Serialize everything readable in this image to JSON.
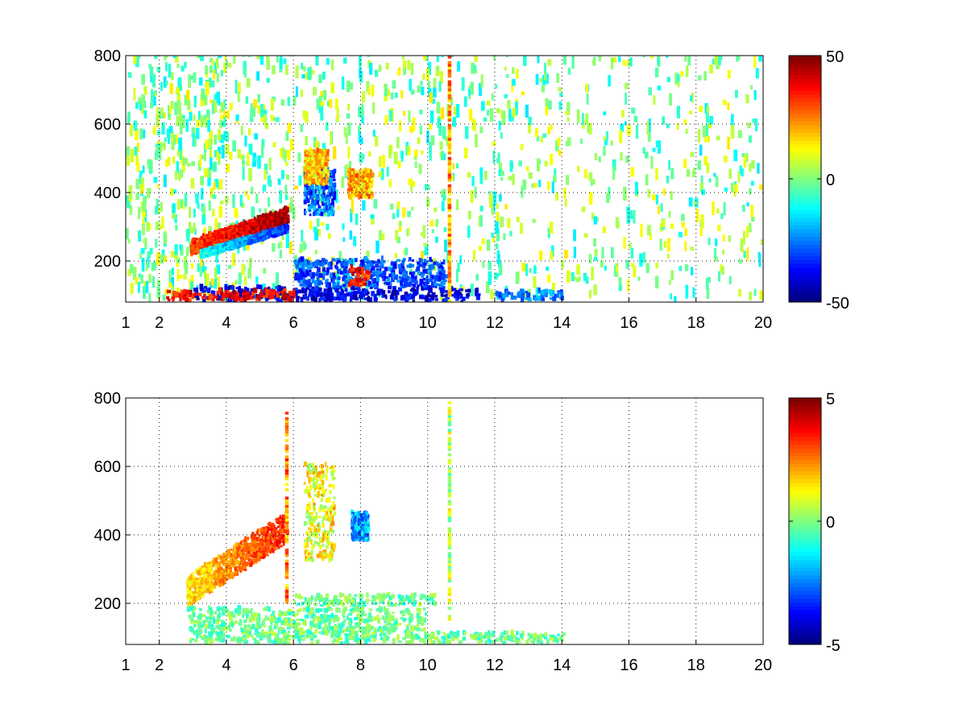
{
  "chart_data": [
    {
      "type": "heatmap",
      "title": "",
      "xlabel": "",
      "ylabel": "",
      "xlim": [
        1,
        20
      ],
      "ylim": [
        80,
        800
      ],
      "xticks": [
        1,
        2,
        4,
        6,
        8,
        10,
        12,
        14,
        16,
        18,
        20
      ],
      "yticks": [
        200,
        400,
        600,
        800
      ],
      "grid": true,
      "colormap": "jet",
      "colorbar": {
        "min": -50,
        "max": 50,
        "ticks": [
          -50,
          0,
          50
        ],
        "placement": "right"
      },
      "features": [
        {
          "kind": "streak",
          "x": [
            2.9,
            5.8
          ],
          "y": [
            235,
            330
          ],
          "values": [
            30,
            48
          ],
          "spread": 22
        },
        {
          "kind": "streak",
          "x": [
            3.2,
            5.8
          ],
          "y": [
            215,
            290
          ],
          "values": [
            -10,
            -35
          ],
          "spread": 10
        },
        {
          "kind": "blob",
          "x": [
            6.3,
            7.2
          ],
          "y": [
            330,
            460
          ],
          "value": -28
        },
        {
          "kind": "blob",
          "x": [
            6.3,
            7.0
          ],
          "y": [
            420,
            520
          ],
          "value": 18
        },
        {
          "kind": "blob",
          "x": [
            7.6,
            8.3
          ],
          "y": [
            380,
            460
          ],
          "value": 20
        },
        {
          "kind": "band",
          "x": [
            3.0,
            11.5
          ],
          "y": [
            80,
            120
          ],
          "value": -40
        },
        {
          "kind": "band",
          "x": [
            2.2,
            6.0
          ],
          "y": [
            80,
            110
          ],
          "value": 38
        },
        {
          "kind": "band",
          "x": [
            6.0,
            10.5
          ],
          "y": [
            120,
            200
          ],
          "value": -30
        },
        {
          "kind": "band",
          "x": [
            7.6,
            8.2
          ],
          "y": [
            120,
            180
          ],
          "value": 35
        },
        {
          "kind": "band",
          "x": [
            12.0,
            14.0
          ],
          "y": [
            80,
            110
          ],
          "value": -25
        },
        {
          "kind": "line",
          "x": [
            10.6,
            10.7
          ],
          "y": [
            80,
            800
          ],
          "value": 22
        }
      ],
      "background_noise": {
        "x": [
          1,
          20
        ],
        "y": [
          80,
          800
        ],
        "range": [
          -15,
          15
        ]
      }
    },
    {
      "type": "heatmap",
      "title": "",
      "xlabel": "",
      "ylabel": "",
      "xlim": [
        1,
        20
      ],
      "ylim": [
        80,
        800
      ],
      "xticks": [
        1,
        2,
        4,
        6,
        8,
        10,
        12,
        14,
        16,
        18,
        20
      ],
      "yticks": [
        200,
        400,
        600,
        800
      ],
      "grid": true,
      "colormap": "jet",
      "colorbar": {
        "min": -5,
        "max": 5,
        "ticks": [
          -5,
          0,
          5
        ],
        "placement": "right"
      },
      "features": [
        {
          "kind": "streak",
          "x": [
            2.8,
            5.8
          ],
          "y": [
            230,
            420
          ],
          "values": [
            1.5,
            3.5
          ],
          "spread": 45
        },
        {
          "kind": "blob",
          "x": [
            6.3,
            7.2
          ],
          "y": [
            320,
            600
          ],
          "value": 1.2
        },
        {
          "kind": "blob",
          "x": [
            7.7,
            8.2
          ],
          "y": [
            380,
            460
          ],
          "value": -2.2
        },
        {
          "kind": "band",
          "x": [
            2.8,
            10.0
          ],
          "y": [
            80,
            180
          ],
          "value": -0.2
        },
        {
          "kind": "band",
          "x": [
            10.0,
            14.0
          ],
          "y": [
            80,
            110
          ],
          "value": -0.2
        },
        {
          "kind": "band",
          "x": [
            6.0,
            10.2
          ],
          "y": [
            190,
            220
          ],
          "value": -0.2
        },
        {
          "kind": "line",
          "x": [
            10.6,
            10.7
          ],
          "y": [
            150,
            790
          ],
          "value": 0.5
        },
        {
          "kind": "line",
          "x": [
            5.75,
            5.85
          ],
          "y": [
            200,
            760
          ],
          "value": 2.5
        }
      ],
      "background_noise": null
    }
  ]
}
